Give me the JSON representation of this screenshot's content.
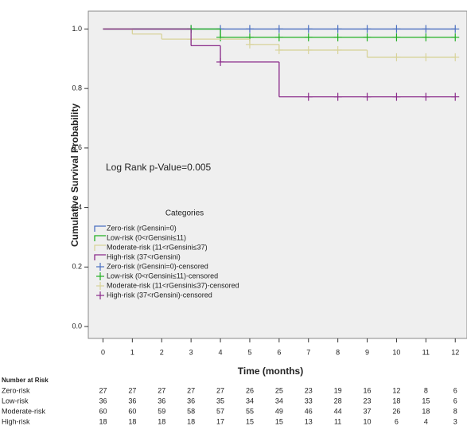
{
  "chart_data": {
    "type": "survival",
    "y_label": "Cumulative Survival Probability",
    "x_label": "Time (months)",
    "annotation": "Log Rank p-Value=0.005",
    "legend_title": "Categories",
    "xlim": [
      -0.5,
      12.4
    ],
    "ylim": [
      -0.04,
      1.06
    ],
    "xticks": [
      0,
      1,
      2,
      3,
      4,
      5,
      6,
      7,
      8,
      9,
      10,
      11,
      12
    ],
    "yticks": [
      {
        "value": 0,
        "label": "0.0"
      },
      0.2,
      0.4,
      0.6,
      0.8,
      {
        "value": 1,
        "label": "1.0"
      }
    ],
    "series": [
      {
        "name": "Zero-risk (rGensini=0)",
        "color": "#4a6fc0",
        "x": [
          0,
          12
        ],
        "values": [
          1,
          1
        ],
        "censored": {
          "name": "Zero-risk (rGensini=0)-censored",
          "x": [
            3,
            4,
            5,
            6,
            7,
            8,
            9,
            10,
            11,
            12
          ],
          "values": [
            1,
            1,
            1,
            1,
            1,
            1,
            1,
            1,
            1,
            1
          ]
        }
      },
      {
        "name": "Low-risk (0<rGensini≤11)",
        "color": "#22b022",
        "x": [
          0,
          4,
          12
        ],
        "values": [
          1,
          0.972,
          0.972
        ],
        "censored": {
          "name": "Low-risk (0<rGensini≤11)-censored",
          "x": [
            3,
            4,
            5,
            6,
            7,
            8,
            9,
            10,
            11,
            12
          ],
          "values": [
            1,
            0.972,
            0.972,
            0.972,
            0.972,
            0.972,
            0.972,
            0.972,
            0.972,
            0.972
          ]
        }
      },
      {
        "name": "Moderate-risk (11<rGensini≤37)",
        "color": "#d8d39a",
        "x": [
          0,
          1,
          2,
          5,
          6,
          9,
          12
        ],
        "values": [
          1,
          0.983,
          0.966,
          0.948,
          0.929,
          0.905,
          0.905
        ],
        "censored": {
          "name": "Moderate-risk (11<rGensini≤37)-censored",
          "x": [
            3,
            5,
            6,
            7,
            8,
            10,
            11,
            12
          ],
          "values": [
            0.966,
            0.948,
            0.929,
            0.929,
            0.929,
            0.905,
            0.905,
            0.905
          ]
        }
      },
      {
        "name": "High-risk (37<rGensini)",
        "color": "#8a2a8a",
        "x": [
          0,
          3,
          4,
          6,
          12
        ],
        "values": [
          1,
          0.944,
          0.889,
          0.772,
          0.772
        ],
        "censored": {
          "name": "High-risk (37<rGensini)-censored",
          "x": [
            4,
            7,
            8,
            9,
            10,
            11,
            12
          ],
          "values": [
            0.889,
            0.772,
            0.772,
            0.772,
            0.772,
            0.772,
            0.772
          ]
        }
      }
    ]
  },
  "risk_table": {
    "title": "Number at Risk",
    "rows": [
      {
        "label": "Zero-risk",
        "values": [
          27,
          27,
          27,
          27,
          27,
          26,
          25,
          23,
          19,
          16,
          12,
          8,
          6
        ]
      },
      {
        "label": "Low-risk",
        "values": [
          36,
          36,
          36,
          36,
          35,
          34,
          34,
          33,
          28,
          23,
          18,
          15,
          6
        ]
      },
      {
        "label": "Moderate-risk",
        "values": [
          60,
          60,
          59,
          58,
          57,
          55,
          49,
          46,
          44,
          37,
          26,
          18,
          8
        ]
      },
      {
        "label": "High-risk",
        "values": [
          18,
          18,
          18,
          18,
          17,
          15,
          15,
          13,
          11,
          10,
          6,
          4,
          3
        ]
      }
    ]
  }
}
